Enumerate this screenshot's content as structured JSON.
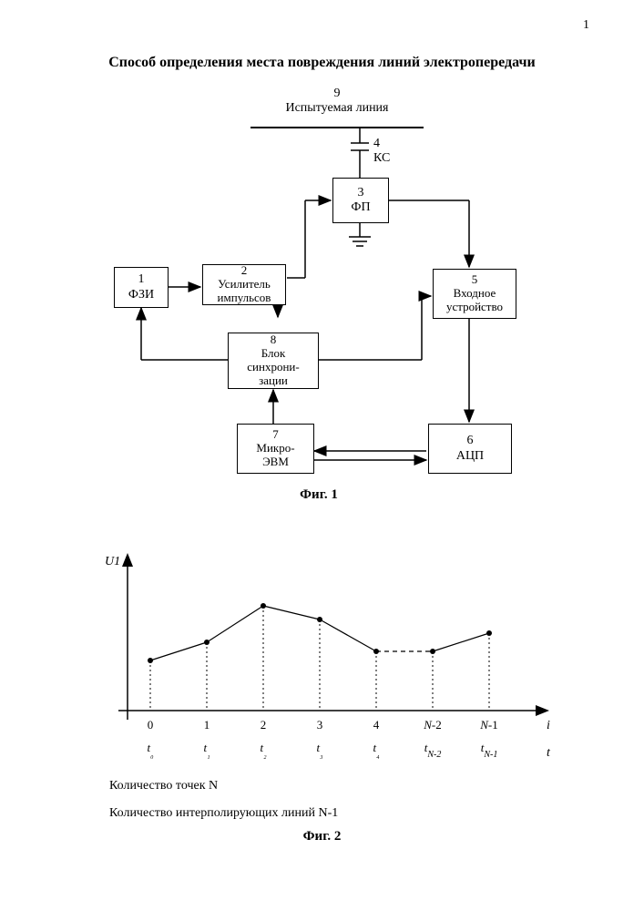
{
  "page_number": "1",
  "title": "Способ определения места повреждения линий электропередачи",
  "fig1": {
    "caption": "Фиг. 1",
    "blocks": {
      "b1": {
        "num": "1",
        "label": "ФЗИ"
      },
      "b2": {
        "num": "2",
        "label": "Усилитель\nимпульсов"
      },
      "b3": {
        "num": "3",
        "label": "ФП"
      },
      "b4": {
        "num": "4",
        "label": "КС"
      },
      "b5": {
        "num": "5",
        "label": "Входное\nустройство"
      },
      "b6": {
        "num": "6",
        "label": "АЦП"
      },
      "b7": {
        "num": "7",
        "label": "Микро-\nЭВМ"
      },
      "b8": {
        "num": "8",
        "label": "Блок\nсинхрони-\nзации"
      },
      "b9": {
        "num": "9",
        "label": "Испытуемая\nлиния"
      }
    },
    "colors": {
      "line": "#000000",
      "bg": "#ffffff"
    }
  },
  "fig2": {
    "caption": "Фиг. 2",
    "y_label": "U1",
    "x_label_i": "i",
    "x_label_t": "t",
    "points_x": [
      0,
      1,
      2,
      3,
      4,
      5,
      6
    ],
    "points_y": [
      55,
      75,
      115,
      100,
      65,
      65,
      85
    ],
    "dashed_segment": [
      4,
      5
    ],
    "tick_labels_i": [
      "0",
      "1",
      "2",
      "3",
      "4",
      "N-2",
      "N-1"
    ],
    "tick_labels_t": [
      "t₀",
      "t₁",
      "t₂",
      "t₃",
      "t₄",
      "t_{N-2}",
      "t_{N-1}"
    ],
    "note1": "Количество точек N",
    "note2": "Количество интерполирующих линий N-1",
    "style": {
      "axis_color": "#000000",
      "point_color": "#000000",
      "line_color": "#000000",
      "point_radius": 3,
      "line_width": 1.2,
      "dotted_color": "#000000"
    }
  }
}
